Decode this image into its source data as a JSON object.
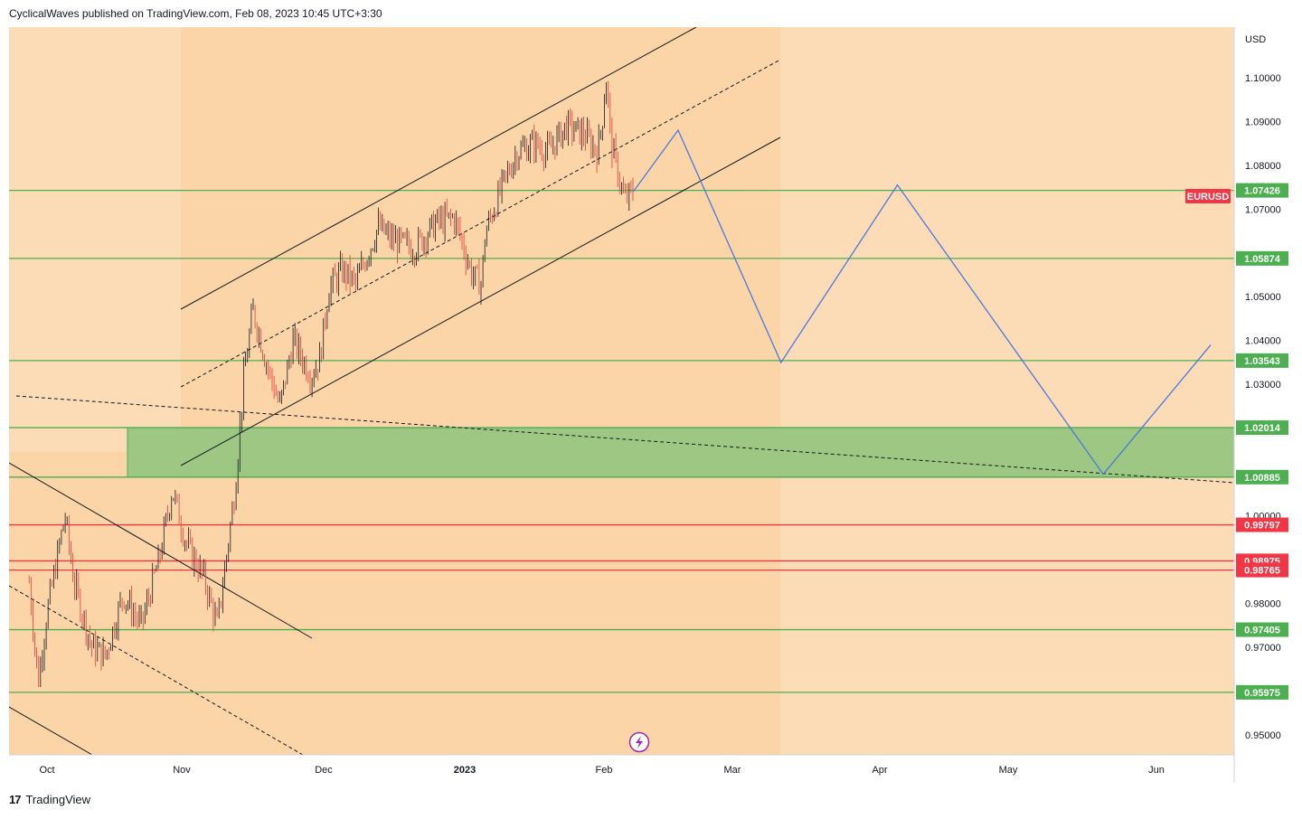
{
  "header": {
    "text": "CyclicalWaves published on TradingView.com, Feb 08, 2023 10:45 UTC+3:30"
  },
  "footer": {
    "brand": "TradingView"
  },
  "colors": {
    "background": "#fcdcb6",
    "channel_fill": "#fbd5a8",
    "zone_fill": "#9dc782",
    "green_line": "#4caf50",
    "red_line": "#f23645",
    "projection": "#4a79e0",
    "candle_up": "#131722",
    "candle_down": "#e53935"
  },
  "chart_data": {
    "type": "candlestick",
    "symbol": "EURUSD",
    "currency": "USD",
    "ylim": [
      0.9455,
      1.1115
    ],
    "y_ticks": [
      "1.10000",
      "1.09000",
      "1.08000",
      "1.07000",
      "1.05000",
      "1.04000",
      "1.03000",
      "1.00000",
      "0.98000",
      "0.97000",
      "0.95000"
    ],
    "x_ticks": [
      "Oct",
      "Nov",
      "Dec",
      "2023",
      "Feb",
      "Mar",
      "Apr",
      "May",
      "Jun"
    ],
    "price_badges": {
      "current": {
        "label": "EURUSD",
        "value": "1.07426"
      }
    },
    "support_levels": [
      {
        "value": "1.07426"
      },
      {
        "value": "1.05874"
      },
      {
        "value": "1.03543"
      },
      {
        "value": "1.02014"
      },
      {
        "value": "1.00885"
      },
      {
        "value": "0.97405"
      },
      {
        "value": "0.95975"
      }
    ],
    "resistance_levels": [
      {
        "value": "0.99797"
      },
      {
        "value": "0.98975"
      },
      {
        "value": "0.98765"
      }
    ],
    "demand_zone": [
      1.00885,
      1.02014
    ],
    "price_path": [
      [
        "Sep 26",
        0.985
      ],
      [
        "Sep 28",
        0.962
      ],
      [
        "Sep 30",
        0.978
      ],
      [
        "Oct 4",
        1.0
      ],
      [
        "Oct 6",
        0.985
      ],
      [
        "Oct 10",
        0.97
      ],
      [
        "Oct 13",
        0.968
      ],
      [
        "Oct 17",
        0.982
      ],
      [
        "Oct 21",
        0.975
      ],
      [
        "Oct 25",
        0.99
      ],
      [
        "Oct 28",
        1.006
      ],
      [
        "Oct 31",
        0.994
      ],
      [
        "Nov 4",
        0.986
      ],
      [
        "Nov 7",
        0.975
      ],
      [
        "Nov 9",
        0.99
      ],
      [
        "Nov 11",
        1.006
      ],
      [
        "Nov 13",
        1.032
      ],
      [
        "Nov 15",
        1.047
      ],
      [
        "Nov 18",
        1.035
      ],
      [
        "Nov 21",
        1.025
      ],
      [
        "Nov 24",
        1.04
      ],
      [
        "Nov 28",
        1.032
      ],
      [
        "Nov 30",
        1.036
      ],
      [
        "Dec 2",
        1.052
      ],
      [
        "Dec 5",
        1.056
      ],
      [
        "Dec 8",
        1.053
      ],
      [
        "Dec 13",
        1.066
      ],
      [
        "Dec 16",
        1.063
      ],
      [
        "Dec 21",
        1.061
      ],
      [
        "Dec 26",
        1.067
      ],
      [
        "Dec 30",
        1.068
      ],
      [
        "Jan 3",
        1.055
      ],
      [
        "Jan 5",
        1.053
      ],
      [
        "Jan 6",
        1.065
      ],
      [
        "Jan 10",
        1.076
      ],
      [
        "Jan 13",
        1.083
      ],
      [
        "Jan 17",
        1.085
      ],
      [
        "Jan 20",
        1.083
      ],
      [
        "Jan 24",
        1.089
      ],
      [
        "Jan 28",
        1.087
      ],
      [
        "Jan 31",
        1.083
      ],
      [
        "Feb 1",
        1.09
      ],
      [
        "Feb 2",
        1.1
      ],
      [
        "Feb 3",
        1.085
      ],
      [
        "Feb 6",
        1.072
      ],
      [
        "Feb 8",
        1.074
      ]
    ],
    "projection_path": [
      [
        "Feb 8",
        1.074
      ],
      [
        "Feb 18",
        1.088
      ],
      [
        "Mar 13",
        1.035
      ],
      [
        "Apr 8",
        1.0755
      ],
      [
        "May 24",
        1.0095
      ],
      [
        "Jun 17",
        1.039
      ]
    ]
  }
}
